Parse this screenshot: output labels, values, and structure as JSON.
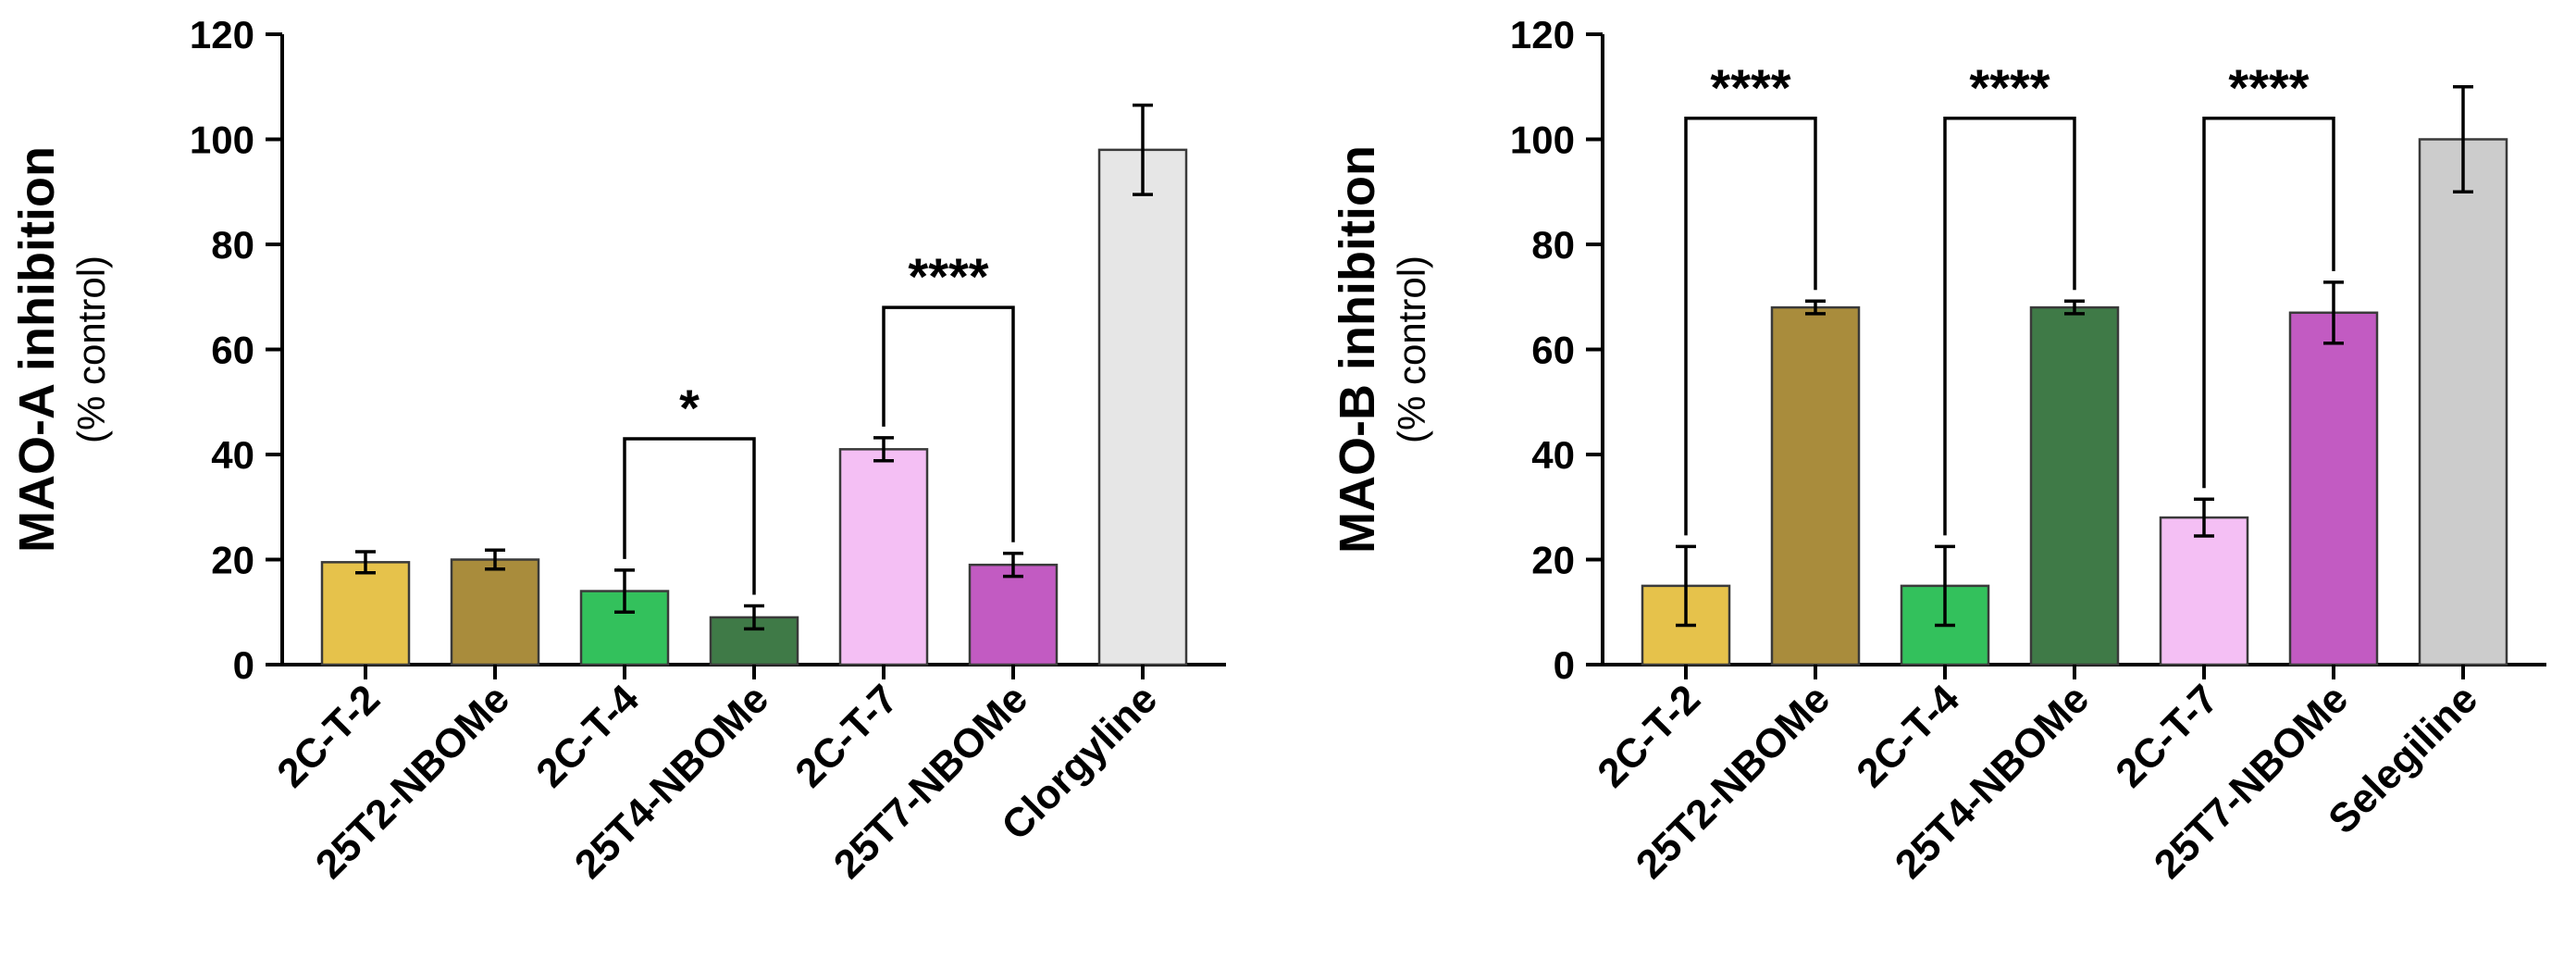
{
  "chart_data": [
    {
      "type": "bar",
      "ylabel": "MAO-A inhibition",
      "ylabel_sub": "(% control)",
      "ylim": [
        0,
        120
      ],
      "yticks": [
        0,
        20,
        40,
        60,
        80,
        100,
        120
      ],
      "categories": [
        "2C-T-2",
        "25T2-NBOMe",
        "2C-T-4",
        "25T4-NBOMe",
        "2C-T-7",
        "25T7-NBOMe",
        "Clorgyline"
      ],
      "values": [
        19.5,
        20,
        14,
        9,
        41,
        19,
        98
      ],
      "errors": [
        2,
        1.8,
        4,
        2.2,
        2.2,
        2.2,
        8.5
      ],
      "colors": [
        "#e6c24b",
        "#a98c3c",
        "#33c15c",
        "#3f7a47",
        "#f4bff4",
        "#c25bc2",
        "#e6e6e6"
      ],
      "significance": [
        {
          "from": 2,
          "to": 3,
          "label": "*",
          "level": 43
        },
        {
          "from": 4,
          "to": 5,
          "label": "****",
          "level": 68
        }
      ]
    },
    {
      "type": "bar",
      "ylabel": "MAO-B inhibition",
      "ylabel_sub": "(% control)",
      "ylim": [
        0,
        120
      ],
      "yticks": [
        0,
        20,
        40,
        60,
        80,
        100,
        120
      ],
      "categories": [
        "2C-T-2",
        "25T2-NBOMe",
        "2C-T-4",
        "25T4-NBOMe",
        "2C-T-7",
        "25T7-NBOMe",
        "Selegiline"
      ],
      "values": [
        15,
        68,
        15,
        68,
        28,
        67,
        100
      ],
      "errors": [
        7.5,
        1.2,
        7.5,
        1.2,
        3.5,
        5.8,
        10
      ],
      "colors": [
        "#e6c24b",
        "#a98c3c",
        "#33c15c",
        "#3f7a47",
        "#f4bff4",
        "#c25bc2",
        "#cccccc"
      ],
      "significance": [
        {
          "from": 0,
          "to": 1,
          "label": "****",
          "level": 104
        },
        {
          "from": 2,
          "to": 3,
          "label": "****",
          "level": 104
        },
        {
          "from": 4,
          "to": 5,
          "label": "****",
          "level": 104
        }
      ]
    }
  ]
}
